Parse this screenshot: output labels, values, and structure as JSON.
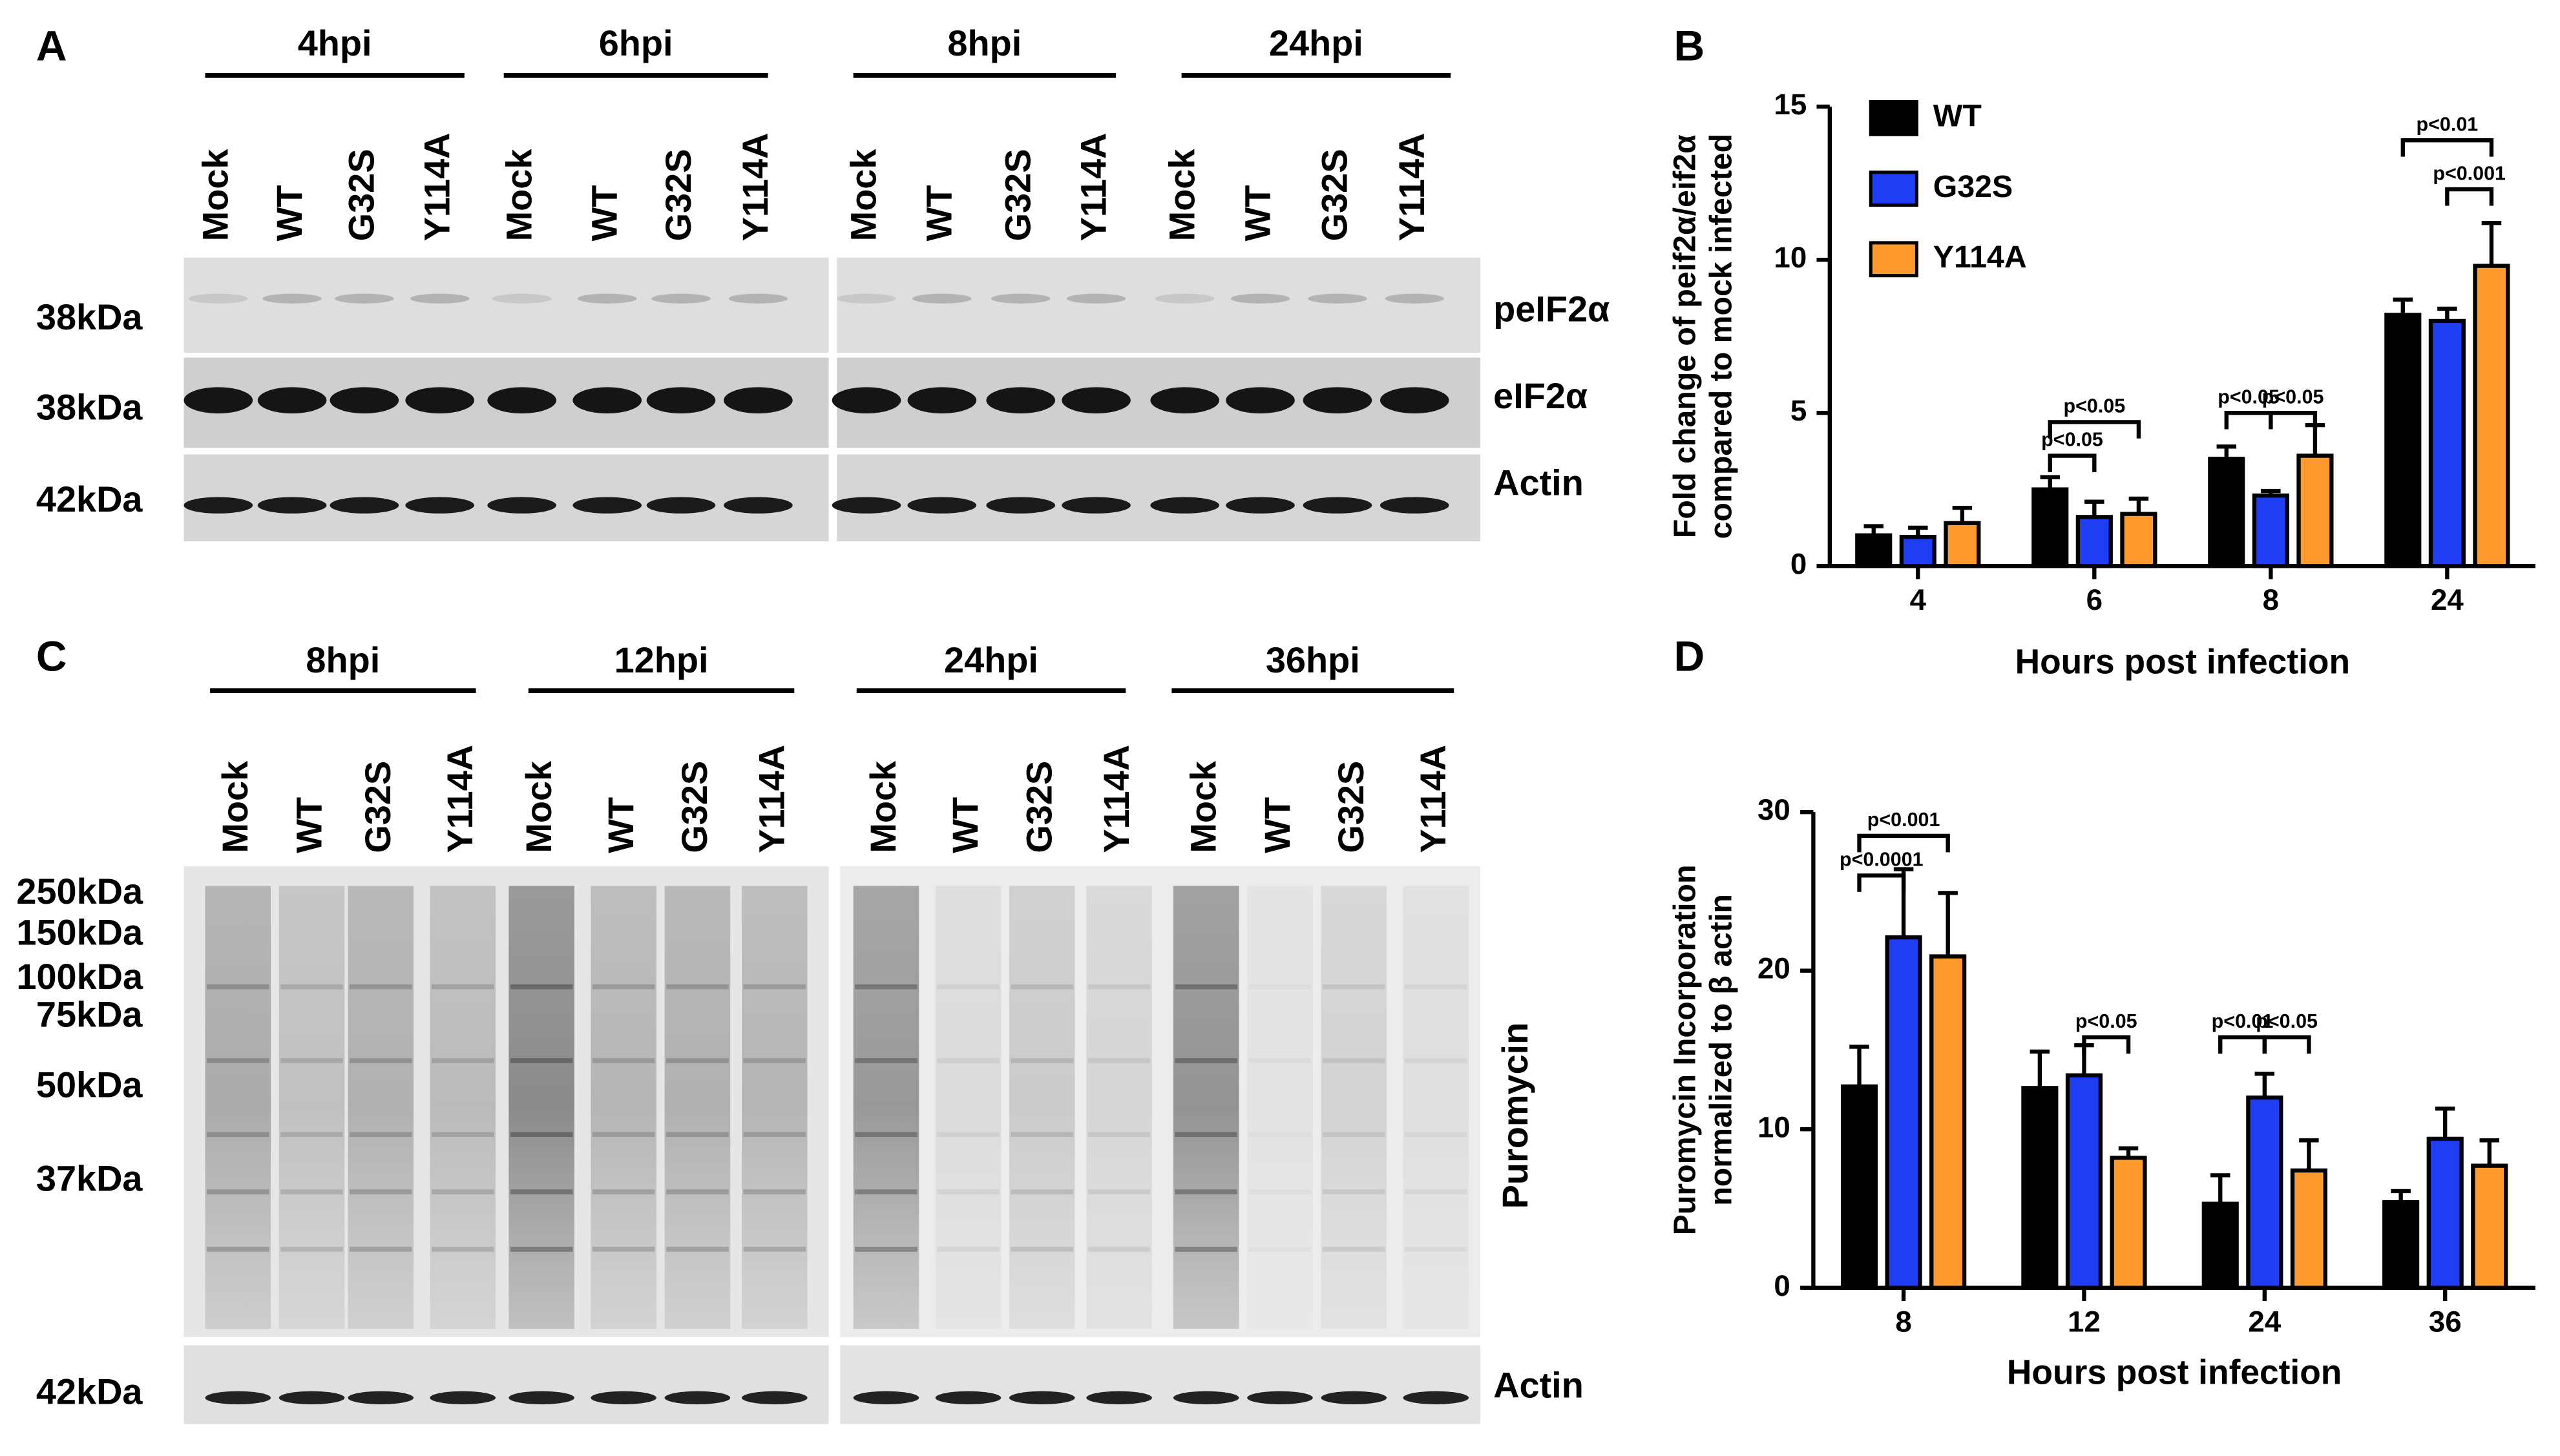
{
  "panels": {
    "A": {
      "letter": "A",
      "timepoints": [
        "4hpi",
        "6hpi",
        "8hpi",
        "24hpi"
      ],
      "lanes": [
        "Mock",
        "WT",
        "G32S",
        "Y114A"
      ],
      "markers": [
        "38kDa",
        "38kDa",
        "42kDa"
      ],
      "rows": [
        "peIF2α",
        "eIF2α",
        "Actin"
      ]
    },
    "C": {
      "letter": "C",
      "timepoints": [
        "8hpi",
        "12hpi",
        "24hpi",
        "36hpi"
      ],
      "lanes": [
        "Mock",
        "WT",
        "G32S",
        "Y114A"
      ],
      "markers": [
        "250kDa",
        "150kDa",
        "100kDa",
        "75kDa",
        "50kDa",
        "37kDa",
        "42kDa"
      ],
      "rows": [
        "Puromycin",
        "Actin"
      ]
    }
  },
  "chart_data": [
    {
      "type": "bar",
      "panel": "B",
      "ylabel": [
        "Fold change of peif2α/eif2α",
        "compared to mock infected"
      ],
      "xlabel": "Hours post infection",
      "categories": [
        "4",
        "6",
        "8",
        "24"
      ],
      "ylim": [
        0,
        15
      ],
      "yticks": [
        0,
        5,
        10,
        15
      ],
      "series": [
        {
          "name": "WT",
          "color": "#000000",
          "values": [
            1.0,
            2.5,
            3.5,
            8.2
          ],
          "errors": [
            0.3,
            0.4,
            0.4,
            0.5
          ]
        },
        {
          "name": "G32S",
          "color": "#1f3df2",
          "values": [
            0.95,
            1.6,
            2.3,
            8.0
          ],
          "errors": [
            0.3,
            0.5,
            0.15,
            0.4
          ]
        },
        {
          "name": "Y114A",
          "color": "#ff9a2e",
          "values": [
            1.4,
            1.7,
            3.6,
            9.8
          ],
          "errors": [
            0.5,
            0.5,
            1.0,
            1.4
          ]
        }
      ],
      "annotations": [
        "p<0.05",
        "p<0.05",
        "p<0.05",
        "p<0.05",
        "p<0.01",
        "p<0.001"
      ]
    },
    {
      "type": "bar",
      "panel": "D",
      "ylabel": [
        "Puromycin Incorporation",
        "normalized to β actin"
      ],
      "xlabel": "Hours post infection",
      "categories": [
        "8",
        "12",
        "24",
        "36"
      ],
      "ylim": [
        0,
        30
      ],
      "yticks": [
        0,
        10,
        20,
        30
      ],
      "series": [
        {
          "color": "#000000",
          "values": [
            12.7,
            12.6,
            5.3,
            5.4
          ],
          "errors": [
            2.5,
            2.3,
            1.8,
            0.7
          ]
        },
        {
          "color": "#1f3df2",
          "values": [
            22.1,
            13.4,
            12.0,
            9.4
          ],
          "errors": [
            4.3,
            1.9,
            1.5,
            1.9
          ]
        },
        {
          "color": "#ff9a2e",
          "values": [
            20.9,
            8.2,
            7.4,
            7.7
          ],
          "errors": [
            4.0,
            0.6,
            1.9,
            1.6
          ]
        }
      ],
      "annotations": [
        "p<0.001",
        "p<0.0001",
        "p<0.05",
        "p<0.01",
        "p<0.05"
      ]
    }
  ]
}
